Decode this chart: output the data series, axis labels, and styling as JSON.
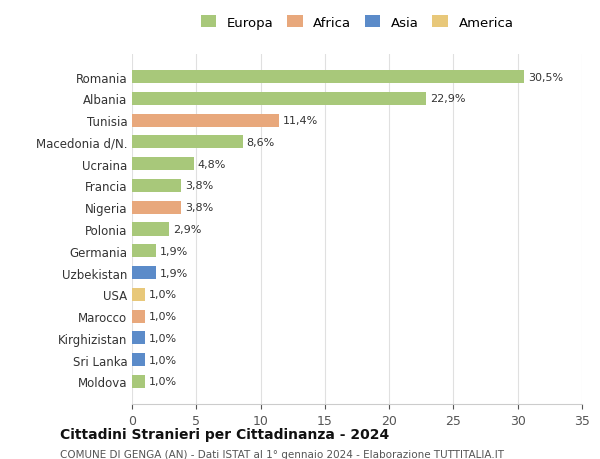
{
  "categories": [
    "Romania",
    "Albania",
    "Tunisia",
    "Macedonia d/N.",
    "Ucraina",
    "Francia",
    "Nigeria",
    "Polonia",
    "Germania",
    "Uzbekistan",
    "USA",
    "Marocco",
    "Kirghizistan",
    "Sri Lanka",
    "Moldova"
  ],
  "values": [
    30.5,
    22.9,
    11.4,
    8.6,
    4.8,
    3.8,
    3.8,
    2.9,
    1.9,
    1.9,
    1.0,
    1.0,
    1.0,
    1.0,
    1.0
  ],
  "labels": [
    "30,5%",
    "22,9%",
    "11,4%",
    "8,6%",
    "4,8%",
    "3,8%",
    "3,8%",
    "2,9%",
    "1,9%",
    "1,9%",
    "1,0%",
    "1,0%",
    "1,0%",
    "1,0%",
    "1,0%"
  ],
  "continents": [
    "Europa",
    "Europa",
    "Africa",
    "Europa",
    "Europa",
    "Europa",
    "Africa",
    "Europa",
    "Europa",
    "Asia",
    "America",
    "Africa",
    "Asia",
    "Asia",
    "Europa"
  ],
  "continent_colors": {
    "Europa": "#a8c87a",
    "Africa": "#e8a87c",
    "Asia": "#5b8bc9",
    "America": "#e8c87a"
  },
  "legend_items": [
    "Europa",
    "Africa",
    "Asia",
    "America"
  ],
  "legend_colors": [
    "#a8c87a",
    "#e8a87c",
    "#5b8bc9",
    "#e8c87a"
  ],
  "title": "Cittadini Stranieri per Cittadinanza - 2024",
  "subtitle": "COMUNE DI GENGA (AN) - Dati ISTAT al 1° gennaio 2024 - Elaborazione TUTTITALIA.IT",
  "xlim": [
    0,
    35
  ],
  "xticks": [
    0,
    5,
    10,
    15,
    20,
    25,
    30,
    35
  ],
  "background_color": "#ffffff",
  "grid_color": "#e0e0e0",
  "bar_height": 0.6
}
